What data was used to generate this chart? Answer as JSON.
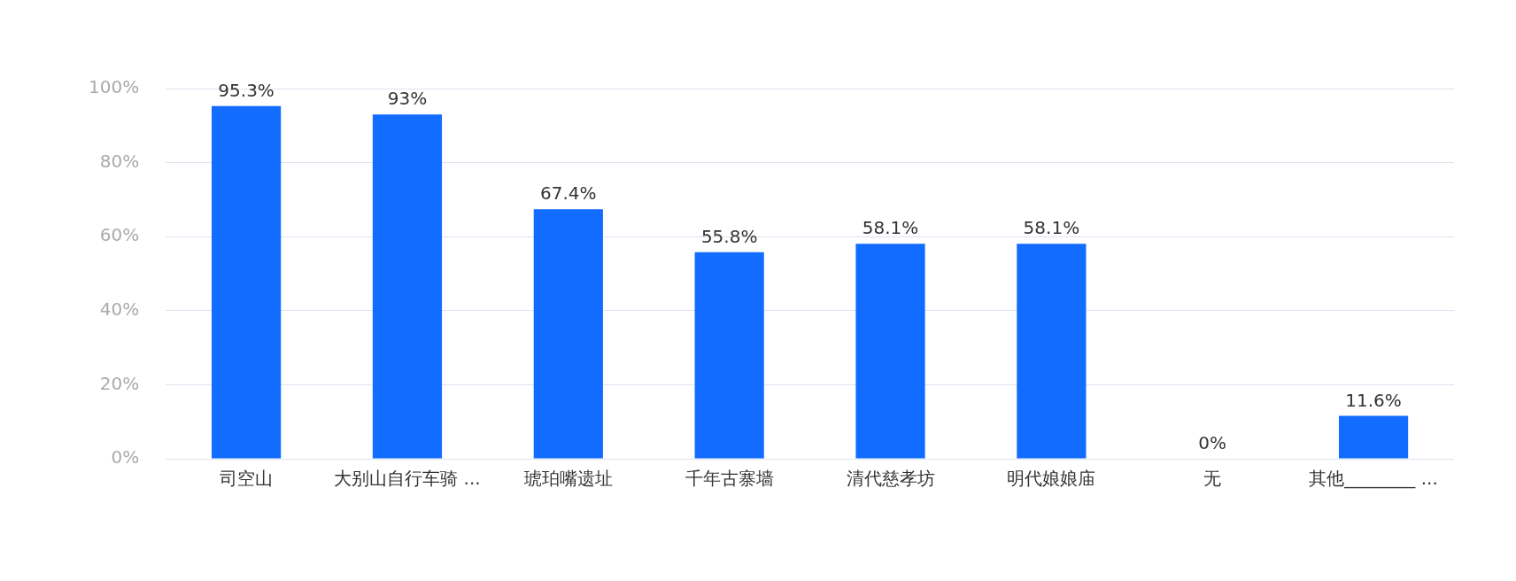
{
  "chart_data": {
    "type": "bar",
    "categories": [
      "司空山",
      "大别山自行车骑 ...",
      "琥珀嘴遗址",
      "千年古寨墙",
      "清代慈孝坊",
      "明代娘娘庙",
      "无",
      "其他________ ..."
    ],
    "values": [
      95.3,
      93,
      67.4,
      55.8,
      58.1,
      58.1,
      0,
      11.6
    ],
    "value_labels": [
      "95.3%",
      "93%",
      "67.4%",
      "55.8%",
      "58.1%",
      "58.1%",
      "0%",
      "11.6%"
    ],
    "color": "#116cff",
    "ylim": [
      0,
      100
    ],
    "yticks": [
      {
        "value": 0,
        "label": "0%"
      },
      {
        "value": 20,
        "label": "20%"
      },
      {
        "value": 40,
        "label": "40%"
      },
      {
        "value": 60,
        "label": "60%"
      },
      {
        "value": 80,
        "label": "80%"
      },
      {
        "value": 100,
        "label": "100%"
      }
    ],
    "grid": "y",
    "legend": false
  }
}
